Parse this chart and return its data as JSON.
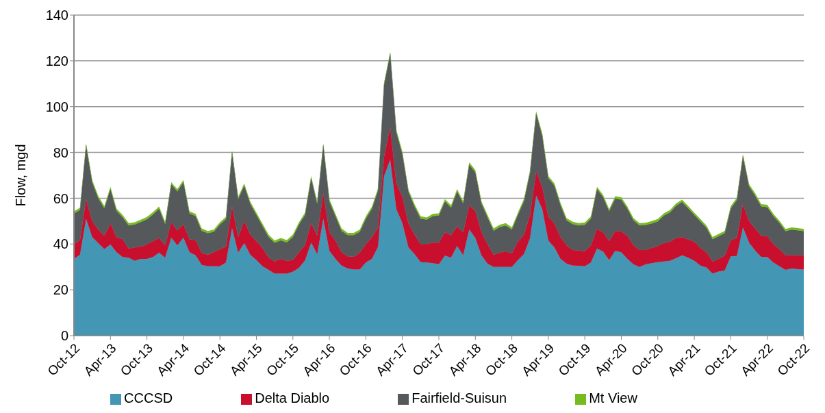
{
  "chart_data": {
    "type": "area",
    "ylabel": "Flow, mgd",
    "stacked": true,
    "grid": "y",
    "legend": "bottom",
    "ylim": [
      0,
      140
    ],
    "yticks": [
      0,
      20,
      40,
      60,
      80,
      100,
      120,
      140
    ],
    "xlim": [
      "2012-10",
      "2022-10"
    ],
    "xticks": [
      {
        "value": "2012-10",
        "label": "Oct-12"
      },
      {
        "value": "2013-04",
        "label": "Apr-13"
      },
      {
        "value": "2013-10",
        "label": "Oct-13"
      },
      {
        "value": "2014-04",
        "label": "Apr-14"
      },
      {
        "value": "2014-10",
        "label": "Oct-14"
      },
      {
        "value": "2015-04",
        "label": "Apr-15"
      },
      {
        "value": "2015-10",
        "label": "Oct-15"
      },
      {
        "value": "2016-04",
        "label": "Apr-16"
      },
      {
        "value": "2016-10",
        "label": "Oct-16"
      },
      {
        "value": "2017-04",
        "label": "Apr-17"
      },
      {
        "value": "2017-10",
        "label": "Oct-17"
      },
      {
        "value": "2018-04",
        "label": "Apr-18"
      },
      {
        "value": "2018-10",
        "label": "Oct-18"
      },
      {
        "value": "2019-04",
        "label": "Apr-19"
      },
      {
        "value": "2019-10",
        "label": "Oct-19"
      },
      {
        "value": "2020-04",
        "label": "Apr-20"
      },
      {
        "value": "2020-10",
        "label": "Oct-20"
      },
      {
        "value": "2021-04",
        "label": "Apr-21"
      },
      {
        "value": "2021-10",
        "label": "Oct-21"
      },
      {
        "value": "2022-04",
        "label": "Apr-22"
      },
      {
        "value": "2022-10",
        "label": "Oct-22"
      }
    ],
    "x": [
      "2012-10",
      "2012-11",
      "2012-12",
      "2013-01",
      "2013-02",
      "2013-03",
      "2013-04",
      "2013-05",
      "2013-06",
      "2013-07",
      "2013-08",
      "2013-09",
      "2013-10",
      "2013-11",
      "2013-12",
      "2014-01",
      "2014-02",
      "2014-03",
      "2014-04",
      "2014-05",
      "2014-06",
      "2014-07",
      "2014-08",
      "2014-09",
      "2014-10",
      "2014-11",
      "2014-12",
      "2015-01",
      "2015-02",
      "2015-03",
      "2015-04",
      "2015-05",
      "2015-06",
      "2015-07",
      "2015-08",
      "2015-09",
      "2015-10",
      "2015-11",
      "2015-12",
      "2016-01",
      "2016-02",
      "2016-03",
      "2016-04",
      "2016-05",
      "2016-06",
      "2016-07",
      "2016-08",
      "2016-09",
      "2016-10",
      "2016-11",
      "2016-12",
      "2017-01",
      "2017-02",
      "2017-03",
      "2017-04",
      "2017-05",
      "2017-06",
      "2017-07",
      "2017-08",
      "2017-09",
      "2017-10",
      "2017-11",
      "2017-12",
      "2018-01",
      "2018-02",
      "2018-03",
      "2018-04",
      "2018-05",
      "2018-06",
      "2018-07",
      "2018-08",
      "2018-09",
      "2018-10",
      "2018-11",
      "2018-12",
      "2019-01",
      "2019-02",
      "2019-03",
      "2019-04",
      "2019-05",
      "2019-06",
      "2019-07",
      "2019-08",
      "2019-09",
      "2019-10",
      "2019-11",
      "2019-12",
      "2020-01",
      "2020-02",
      "2020-03",
      "2020-04",
      "2020-05",
      "2020-06",
      "2020-07",
      "2020-08",
      "2020-09",
      "2020-10",
      "2020-11",
      "2020-12",
      "2021-01",
      "2021-02",
      "2021-03",
      "2021-04",
      "2021-05",
      "2021-06",
      "2021-07",
      "2021-08",
      "2021-09",
      "2021-10",
      "2021-11",
      "2021-12",
      "2022-01",
      "2022-02",
      "2022-03",
      "2022-04",
      "2022-05",
      "2022-06",
      "2022-07",
      "2022-08",
      "2022-09",
      "2022-10"
    ],
    "series": [
      {
        "name": "CCCSD",
        "color": "#4496b5",
        "values": [
          33.5,
          35.3,
          51,
          43,
          40.4,
          37.8,
          39.8,
          36.4,
          34.3,
          34,
          32.7,
          33.5,
          33.5,
          34.3,
          36.2,
          34,
          42.8,
          39.4,
          42.8,
          36.4,
          35.1,
          30.9,
          30.3,
          30.3,
          30.3,
          31.9,
          47,
          36.2,
          40.4,
          35.3,
          33,
          30.3,
          28.7,
          27.1,
          27.1,
          27.1,
          27.9,
          29.6,
          32.8,
          40.6,
          35.5,
          51,
          37,
          33.5,
          30.6,
          29.3,
          28.9,
          28.9,
          31.9,
          33.5,
          38.8,
          69.7,
          76.8,
          55.3,
          49.1,
          38.5,
          35.6,
          32.1,
          31.9,
          31.6,
          31.2,
          34.9,
          34,
          39.1,
          35.1,
          46.3,
          42.6,
          35.1,
          31.4,
          30,
          30,
          30,
          30,
          33,
          35.6,
          42.6,
          61.2,
          55.3,
          41.5,
          38.5,
          33.5,
          31.4,
          30.6,
          30.5,
          30.3,
          31.9,
          38,
          36.7,
          33,
          37,
          36.4,
          33.5,
          31.1,
          30,
          31.1,
          31.6,
          32.1,
          32.4,
          32.7,
          33.8,
          35.1,
          34,
          32.7,
          30.6,
          29.8,
          27.1,
          28,
          28.4,
          34.6,
          34.8,
          47.3,
          40.6,
          37.2,
          34.3,
          34.3,
          31.9,
          30.3,
          28.7,
          29.3,
          29,
          28.9
        ]
      },
      {
        "name": "Delta Diablo",
        "color": "#c8102e",
        "values": [
          6.5,
          6.4,
          8.6,
          7,
          5.9,
          5.8,
          9.2,
          6.6,
          7.7,
          4,
          5.8,
          5.4,
          6.3,
          7,
          6.4,
          5.4,
          6.7,
          6.6,
          5.8,
          5.6,
          6.6,
          5.3,
          5,
          6.1,
          7.5,
          6.9,
          9.4,
          6.8,
          9.6,
          8.8,
          8.3,
          8,
          5.3,
          5.3,
          6.4,
          5.6,
          5.1,
          6.8,
          6.8,
          8.5,
          8.1,
          11.2,
          8.2,
          8,
          5.8,
          5.3,
          5.5,
          7.3,
          8,
          9.5,
          8.5,
          8.5,
          14.2,
          11.2,
          11.5,
          10.5,
          8.5,
          7.8,
          8,
          9,
          9.4,
          10.3,
          9.8,
          8.6,
          10.1,
          10.6,
          11.7,
          10.1,
          8.5,
          5.3,
          6.2,
          6.9,
          5.9,
          8,
          8.5,
          10.1,
          10.6,
          9.6,
          10.5,
          10.5,
          9.5,
          8,
          6.8,
          6.7,
          6.6,
          7.5,
          8.6,
          8.5,
          8.3,
          8.7,
          9.1,
          10.1,
          8.3,
          7.4,
          6.3,
          6.7,
          7,
          8,
          8.3,
          8.8,
          7.9,
          8,
          8.3,
          7.7,
          6.6,
          5.3,
          5.5,
          6.5,
          7.1,
          7.8,
          10.1,
          9.4,
          9.6,
          9.3,
          9.1,
          8,
          7.5,
          6.4,
          5.8,
          6.1,
          6.2
        ]
      },
      {
        "name": "Fairfield-Suisun",
        "color": "#55595c",
        "values": [
          13.3,
          13.2,
          23.4,
          17,
          13.7,
          12,
          15,
          11.5,
          9.7,
          10.1,
          10,
          10.7,
          11,
          11.6,
          12.8,
          9.3,
          16.5,
          17,
          18.4,
          11.3,
          10.5,
          9.6,
          9.4,
          8.9,
          10.7,
          12.1,
          23.5,
          16.6,
          15.5,
          13.4,
          11.4,
          9.6,
          9.1,
          8.1,
          8.1,
          8,
          10.1,
          12.1,
          13.1,
          19.6,
          13.9,
          20.8,
          13.4,
          10.7,
          9.4,
          9.3,
          9.5,
          9.1,
          11.2,
          12.4,
          16.1,
          31.4,
          32,
          22.5,
          18.7,
          13.8,
          12.3,
          11.2,
          10.7,
          11.6,
          11.8,
          13.4,
          12.1,
          15.3,
          12.5,
          17.8,
          17,
          12.5,
          11.8,
          10.5,
          11.2,
          11.2,
          10.4,
          11.7,
          14.7,
          18.6,
          25.2,
          22.4,
          16.7,
          16.5,
          14,
          10.9,
          11.3,
          10.9,
          11.5,
          11.7,
          17.4,
          15.3,
          13,
          14.2,
          13.9,
          11.8,
          10.9,
          10.7,
          10.9,
          10.7,
          10.8,
          12,
          12.8,
          14.1,
          15.4,
          13.6,
          11.7,
          11.6,
          10.7,
          9.7,
          9.9,
          9.8,
          13.9,
          16.6,
          20.9,
          15.2,
          14.4,
          12.8,
          12.7,
          12.3,
          11.4,
          10.5,
          11.2,
          10.9,
          10.5
        ]
      },
      {
        "name": "Mt View",
        "color": "#77bc1f",
        "values": [
          1,
          1,
          1,
          1,
          1,
          1,
          1,
          1,
          1,
          1,
          1,
          1,
          1,
          1,
          1,
          1,
          1,
          1,
          1,
          1,
          1,
          1,
          1,
          1,
          1,
          1,
          1,
          1,
          1,
          1,
          1,
          1,
          1,
          1,
          1,
          1,
          1,
          1,
          1,
          1,
          1,
          1,
          1,
          1,
          1,
          1,
          1,
          1,
          1,
          1,
          1,
          1,
          1,
          1,
          1,
          1,
          1,
          1,
          1,
          1,
          1,
          1,
          1,
          1,
          1,
          1,
          1,
          1,
          1,
          1,
          1,
          1,
          1,
          1,
          1,
          1,
          1,
          1,
          1,
          1,
          1,
          1,
          1,
          1,
          1,
          1,
          1,
          1,
          1,
          1,
          1,
          1,
          1,
          1,
          1,
          1,
          1,
          1,
          1,
          1,
          1,
          1,
          1,
          1,
          1,
          1,
          1,
          1,
          1,
          1,
          1,
          1,
          1,
          1,
          1,
          1,
          1,
          1,
          1,
          1,
          1
        ]
      }
    ]
  }
}
